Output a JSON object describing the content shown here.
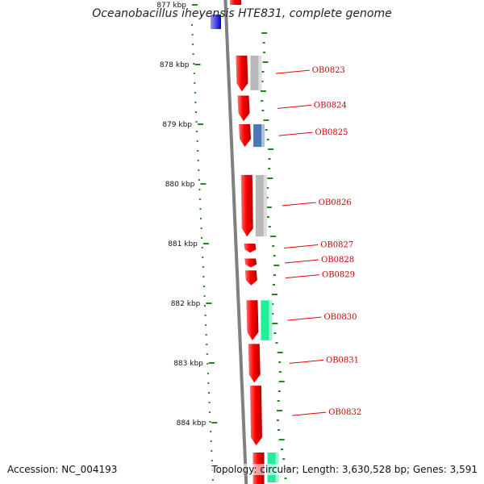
{
  "title": "Oceanobacillus iheyensis HTE831, complete genome",
  "accession_label": "Accession: NC_004193",
  "topology_label": "Topology: circular; Length: 3,630,528 bp; Genes: 3,591",
  "scale_ticks": [
    {
      "label": "877 kbp",
      "pos": 877
    },
    {
      "label": "878 kbp",
      "pos": 878
    },
    {
      "label": "879 kbp",
      "pos": 879
    },
    {
      "label": "880 kbp",
      "pos": 880
    },
    {
      "label": "881 kbp",
      "pos": 881
    },
    {
      "label": "882 kbp",
      "pos": 882
    },
    {
      "label": "883 kbp",
      "pos": 883
    },
    {
      "label": "884 kbp",
      "pos": 884
    }
  ],
  "genes": [
    {
      "label": "OB0823",
      "start": 877.85,
      "end": 878.45
    },
    {
      "label": "OB0824",
      "start": 878.52,
      "end": 878.95
    },
    {
      "label": "OB0825",
      "start": 879.0,
      "end": 879.38
    },
    {
      "label": "OB0826",
      "start": 879.85,
      "end": 880.88
    },
    {
      "label": "OB0827",
      "start": 881.0,
      "end": 881.15
    },
    {
      "label": "OB0828",
      "start": 881.25,
      "end": 881.4
    },
    {
      "label": "OB0829",
      "start": 881.45,
      "end": 881.7
    },
    {
      "label": "OB0830",
      "start": 881.95,
      "end": 882.62
    },
    {
      "label": "OB0831",
      "start": 882.68,
      "end": 883.33
    },
    {
      "label": "OB0832",
      "start": 883.38,
      "end": 884.38
    }
  ],
  "cog_blocks": [
    {
      "start": 877.85,
      "end": 878.43,
      "color": "#b8b8b8"
    },
    {
      "start": 879.0,
      "end": 879.38,
      "color": "#4a78b0"
    },
    {
      "start": 879.85,
      "end": 880.88,
      "color": "#b8b8b8"
    },
    {
      "start": 881.95,
      "end": 882.62,
      "color": "#22ee99"
    },
    {
      "start": 884.5,
      "end": 885.0,
      "color": "#22ee99"
    }
  ],
  "colors": {
    "gene": "#ee0000",
    "backbone": "#808080",
    "gc_dots": "#228822",
    "highlight": "#0000dd"
  }
}
